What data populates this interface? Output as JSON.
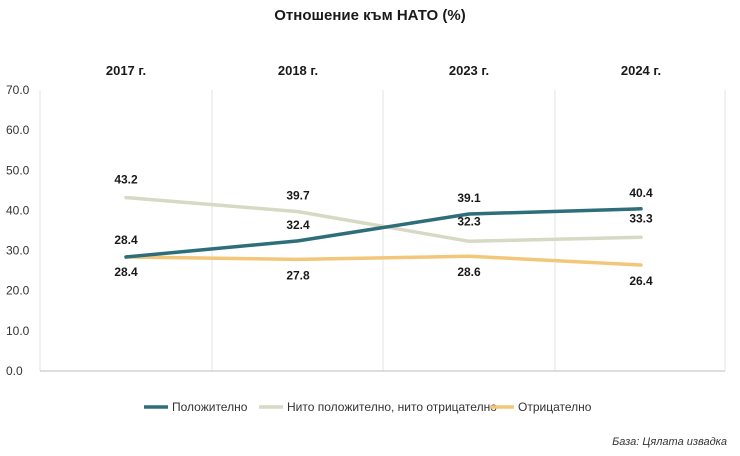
{
  "chart_data": {
    "type": "line",
    "title": "Отношение към НАТО (%)",
    "categories": [
      "2017 г.",
      "2018 г.",
      "2023 г.",
      "2024 г."
    ],
    "ylim": [
      0,
      70
    ],
    "yticks": [
      "0.0",
      "10.0",
      "20.0",
      "30.0",
      "40.0",
      "50.0",
      "60.0",
      "70.0"
    ],
    "grid": "vertical",
    "legend_position": "bottom",
    "series": [
      {
        "name": "Положително",
        "color": "#2e6e7a",
        "values": [
          28.4,
          32.4,
          39.1,
          40.4
        ],
        "labels": [
          "28.4",
          "32.4",
          "39.1",
          "40.4"
        ]
      },
      {
        "name": "Нито положително, нито отрицателно",
        "color": "#d8d9c4",
        "values": [
          43.2,
          39.7,
          32.3,
          33.3
        ],
        "labels": [
          "43.2",
          "39.7",
          "32.3",
          "33.3"
        ]
      },
      {
        "name": "Отрицателно",
        "color": "#f3c77a",
        "values": [
          28.4,
          27.8,
          28.6,
          26.4
        ],
        "labels": [
          "28.4",
          "27.8",
          "28.6",
          "26.4"
        ]
      }
    ],
    "source_note": "База: Цялата извадка"
  }
}
